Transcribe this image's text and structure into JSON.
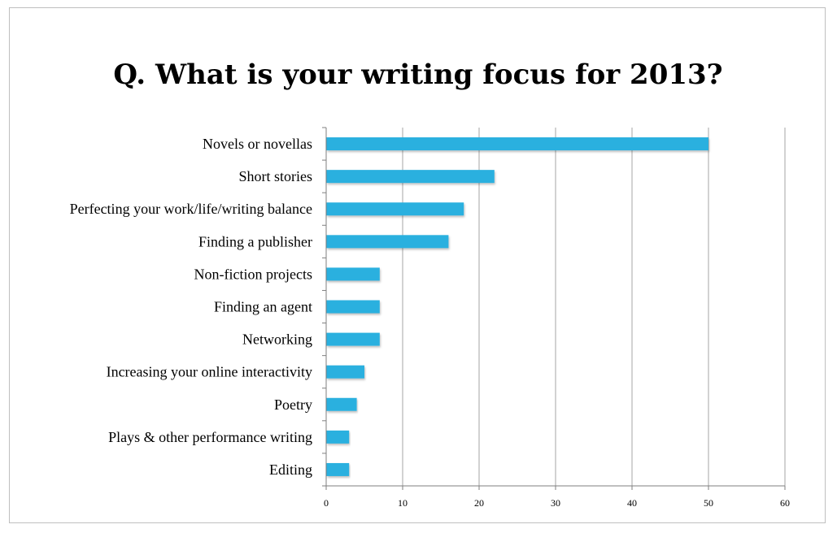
{
  "chart_data": {
    "type": "bar",
    "orientation": "horizontal",
    "title": "Q. What is your writing focus for 2013?",
    "categories": [
      "Novels or novellas",
      "Short stories",
      "Perfecting your work/life/writing balance",
      "Finding a publisher",
      "Non-fiction projects",
      "Finding an agent",
      "Networking",
      "Increasing your online interactivity",
      "Poetry",
      "Plays & other performance writing",
      "Editing"
    ],
    "values": [
      50,
      22,
      18,
      16,
      7,
      7,
      7,
      5,
      4,
      3,
      3
    ],
    "xlim": [
      0,
      60
    ],
    "xticks": [
      0,
      10,
      20,
      30,
      40,
      50,
      60
    ],
    "grid": true,
    "bar_color": "#29b0df"
  }
}
